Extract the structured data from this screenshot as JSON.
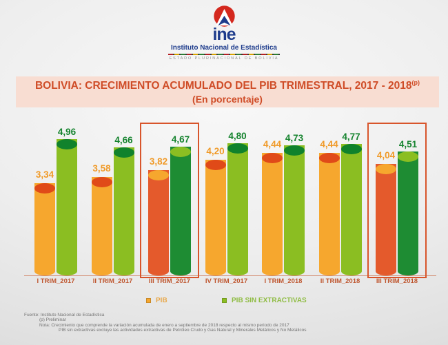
{
  "header": {
    "brand_word": "ine",
    "org_name": "Instituto Nacional de Estadística",
    "tagline": "ESTADO PLURINACIONAL DE BOLIVIA"
  },
  "title": {
    "line1": "BOLIVIA: CRECIMIENTO ACUMULADO DEL PIB TRIMESTRAL, 2017 - 2018",
    "superscript": "(p)",
    "line2": "(En porcentaje)"
  },
  "chart_data": {
    "type": "bar",
    "title": "BOLIVIA: CRECIMIENTO ACUMULADO DEL PIB TRIMESTRAL, 2017 - 2018 (p) (En porcentaje)",
    "categories": [
      "I TRIM_2017",
      "II TRIM_2017",
      "III TRIM_2017",
      "IV TRIM_2017",
      "I TRIM_2018",
      "II TRIM_2018",
      "III TRIM_2018"
    ],
    "series": [
      {
        "name": "PIB",
        "values": [
          3.34,
          3.58,
          3.82,
          4.2,
          4.44,
          4.44,
          4.04
        ],
        "color": "#F6A72E",
        "cap_color": "#E04A18",
        "highlight_color": "#E45A2C",
        "highlight_cap_color": "#F6A72E",
        "label_color": "#F09A28"
      },
      {
        "name": "PIB SIN EXTRACTIVAS",
        "values": [
          4.96,
          4.66,
          4.67,
          4.8,
          4.73,
          4.77,
          4.51
        ],
        "color": "#8BBE22",
        "cap_color": "#10822C",
        "highlight_color": "#1E8C33",
        "highlight_cap_color": "#8BBE22",
        "label_color": "#15832E"
      }
    ],
    "highlighted_categories": [
      2,
      6
    ],
    "decimal_separator": ",",
    "xlabel": "",
    "ylabel": "",
    "ylim": [
      0,
      5.2
    ],
    "grid": false,
    "legend_position": "bottom"
  },
  "legend": [
    {
      "label": "PIB",
      "color": "#F6A72E"
    },
    {
      "label": "PIB SIN EXTRACTIVAS",
      "color": "#8BBE22"
    }
  ],
  "footer": {
    "lines": [
      "Fuente: Instituto Nacional de Estadística",
      "(p) Preliminar",
      "Nota: Crecimiento que  comprende la variación acumulada de enero a septiembre de 2018 respecto al mismo periodo de 2017",
      "PIB sin extractivas excluye las actividades extractivas de Petróleo Crudo y Gas Natural y Minerales  Metálicos y No Metálicos"
    ]
  }
}
